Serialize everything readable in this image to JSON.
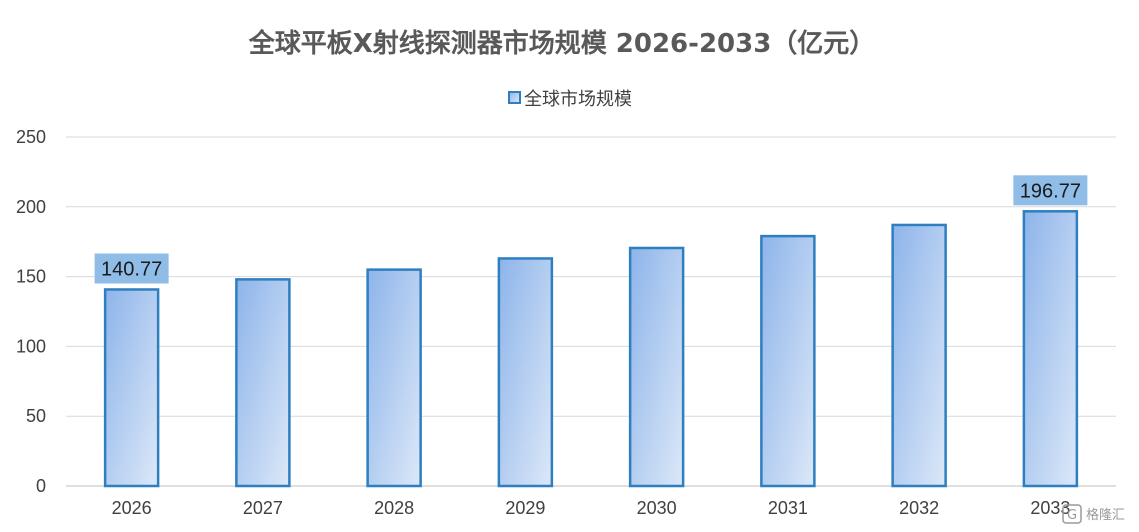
{
  "chart_data": {
    "type": "bar",
    "title": "全球平板X射线探测器市场规模 2026-2033（亿元）",
    "categories": [
      "2026",
      "2027",
      "2028",
      "2029",
      "2030",
      "2031",
      "2032",
      "2033"
    ],
    "series": [
      {
        "name": "全球市场规模",
        "values": [
          140.77,
          148.0,
          155.0,
          163.0,
          170.5,
          179.0,
          187.0,
          196.77
        ]
      }
    ],
    "data_labels": [
      {
        "category": "2026",
        "text": "140.77"
      },
      {
        "category": "2033",
        "text": "196.77"
      }
    ],
    "yticks": [
      "0",
      "50",
      "100",
      "150",
      "200",
      "250"
    ],
    "ylim": [
      0,
      250
    ],
    "grid": true,
    "legend_position": "top-center",
    "colors": {
      "bar_fill_start": "#8db4ea",
      "bar_fill_end": "#dce8f8",
      "bar_stroke": "#2e7fc0",
      "label_bg": "#8fbde8",
      "grid": "#d9d9d9",
      "axis": "#bfbfbf"
    }
  },
  "watermark": {
    "icon": "logo-icon",
    "text": "格隆汇"
  }
}
